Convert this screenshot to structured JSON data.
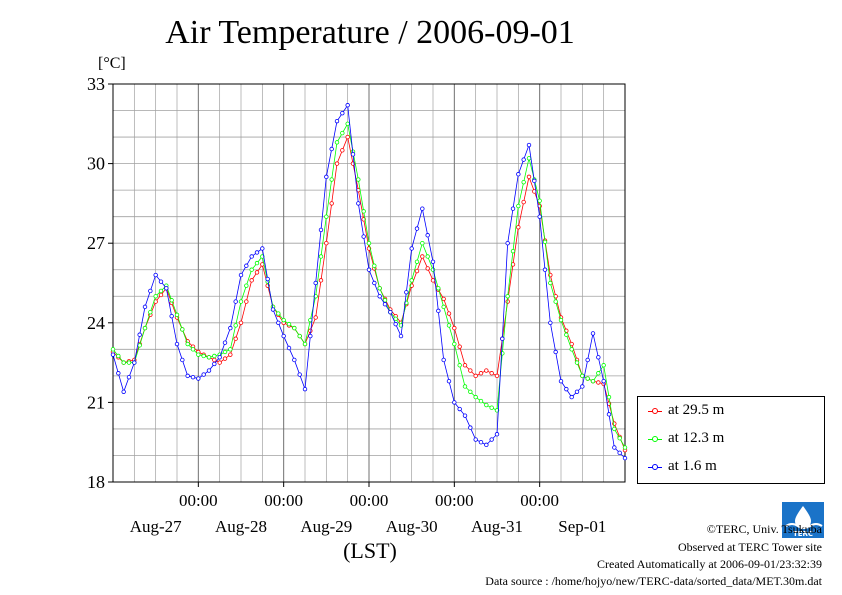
{
  "title": "Air Temperature / 2006-09-01",
  "unit_label": "[°C]",
  "xlabel": "(LST)",
  "footer": {
    "copyright": "©TERC, Univ. Tsukuba",
    "observed": "Observed at TERC Tower site",
    "created": "Created Automatically at 2006-09-01/23:32:39",
    "source": "Data source : /home/hojyo/new/TERC-data/sorted_data/MET.30m.dat"
  },
  "logo_text": "TERC",
  "colors": {
    "s29": "#ff0000",
    "s12": "#00ff00",
    "s1": "#0000ff",
    "grid": "#a0a0a0"
  },
  "chart_data": {
    "type": "line",
    "title": "Air Temperature / 2006-09-01",
    "ylabel": "[°C]",
    "xlabel": "(LST)",
    "ylim": [
      18,
      33
    ],
    "yticks": [
      18,
      21,
      24,
      27,
      30,
      33
    ],
    "xlim_hours": [
      0,
      144
    ],
    "x_day_labels": [
      "Aug-27",
      "Aug-28",
      "Aug-29",
      "Aug-30",
      "Aug-31",
      "Sep-01"
    ],
    "x_time_label": "00:00",
    "grid": true,
    "legend_position": "bottom-right",
    "series": [
      {
        "name": "at 29.5 m",
        "color": "#ff0000",
        "hours": [
          0,
          3,
          6,
          9,
          12,
          15,
          18,
          21,
          24,
          27,
          30,
          33,
          36,
          39,
          42,
          45,
          48,
          51,
          54,
          57,
          60,
          63,
          66,
          69,
          72,
          75,
          78,
          81,
          84,
          87,
          90,
          93,
          96,
          99,
          102,
          105,
          108,
          111,
          114,
          117,
          120,
          123,
          126,
          129,
          132,
          135,
          138,
          141,
          144
        ],
        "values": [
          22.9,
          22.5,
          22.6,
          23.8,
          24.8,
          25.3,
          24.2,
          23.3,
          22.9,
          22.7,
          22.5,
          22.8,
          24.0,
          25.6,
          26.2,
          24.6,
          24.0,
          23.8,
          23.2,
          24.2,
          27.0,
          30.0,
          31.0,
          29.0,
          26.8,
          25.3,
          24.5,
          24.0,
          25.4,
          26.5,
          25.6,
          24.9,
          23.8,
          22.4,
          22.0,
          22.2,
          22.0,
          24.8,
          27.6,
          29.5,
          28.4,
          25.8,
          24.2,
          23.2,
          22.0,
          21.8,
          21.7,
          20.2,
          19.2
        ]
      },
      {
        "name": "at 12.3 m",
        "color": "#00ff00",
        "hours": [
          0,
          3,
          6,
          9,
          12,
          15,
          18,
          21,
          24,
          27,
          30,
          33,
          36,
          39,
          42,
          45,
          48,
          51,
          54,
          57,
          60,
          63,
          66,
          69,
          72,
          75,
          78,
          81,
          84,
          87,
          90,
          93,
          96,
          99,
          102,
          105,
          108,
          111,
          114,
          117,
          120,
          123,
          126,
          129,
          132,
          135,
          138,
          141,
          144
        ],
        "values": [
          23.0,
          22.5,
          22.5,
          23.8,
          25.0,
          25.4,
          24.3,
          23.2,
          22.8,
          22.7,
          22.8,
          23.0,
          24.8,
          26.0,
          26.5,
          24.6,
          24.1,
          23.8,
          23.2,
          25.0,
          28.0,
          30.8,
          31.5,
          29.4,
          27.0,
          25.3,
          24.4,
          23.9,
          25.6,
          27.0,
          26.0,
          24.6,
          23.2,
          21.6,
          21.2,
          20.9,
          20.7,
          25.0,
          28.4,
          30.2,
          28.6,
          25.5,
          24.1,
          23.0,
          22.0,
          21.8,
          22.4,
          20.0,
          19.3
        ]
      },
      {
        "name": "at 1.6 m",
        "color": "#0000ff",
        "hours": [
          0,
          3,
          6,
          9,
          12,
          15,
          18,
          21,
          24,
          27,
          30,
          33,
          36,
          39,
          42,
          45,
          48,
          51,
          54,
          57,
          60,
          63,
          66,
          69,
          72,
          75,
          78,
          81,
          84,
          87,
          90,
          93,
          96,
          99,
          102,
          105,
          108,
          111,
          114,
          117,
          120,
          123,
          126,
          129,
          132,
          135,
          138,
          141,
          144
        ],
        "values": [
          22.8,
          21.4,
          22.5,
          24.6,
          25.8,
          25.3,
          23.2,
          22.0,
          21.9,
          22.2,
          22.7,
          23.8,
          25.8,
          26.5,
          26.8,
          24.5,
          23.5,
          22.6,
          21.5,
          25.5,
          29.5,
          31.6,
          32.2,
          28.5,
          26.0,
          25.0,
          24.4,
          23.5,
          26.8,
          28.3,
          26.3,
          22.6,
          21.0,
          20.5,
          19.6,
          19.4,
          19.8,
          27.0,
          29.6,
          30.7,
          28.0,
          24.0,
          21.8,
          21.2,
          21.6,
          23.6,
          21.8,
          19.3,
          18.9
        ]
      }
    ]
  }
}
